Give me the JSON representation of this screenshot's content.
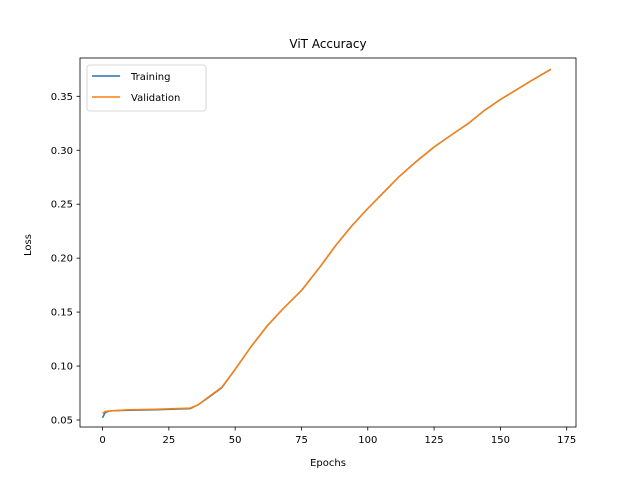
{
  "chart_data": {
    "type": "line",
    "title": "ViT Accuracy",
    "xlabel": "Epochs",
    "ylabel": "Loss",
    "xlim": [
      -8.5,
      178.5
    ],
    "ylim": [
      0.0435,
      0.3855
    ],
    "xticks": [
      0,
      25,
      50,
      75,
      100,
      125,
      150,
      175
    ],
    "yticks": [
      0.05,
      0.1,
      0.15,
      0.2,
      0.25,
      0.3,
      0.35
    ],
    "ytick_labels": [
      "0.05",
      "0.10",
      "0.15",
      "0.20",
      "0.25",
      "0.30",
      "0.35"
    ],
    "legend": "top-left",
    "grid": false,
    "series": [
      {
        "name": "Training",
        "color": "#1f77b4",
        "points": [
          [
            0,
            0.052
          ],
          [
            1,
            0.057
          ],
          [
            3,
            0.0585
          ],
          [
            10,
            0.059
          ],
          [
            20,
            0.0595
          ],
          [
            33,
            0.0605
          ],
          [
            36,
            0.064
          ],
          [
            40,
            0.071
          ],
          [
            45,
            0.08
          ],
          [
            50,
            0.097
          ],
          [
            56,
            0.118
          ],
          [
            62,
            0.137
          ],
          [
            68,
            0.153
          ],
          [
            75,
            0.17
          ],
          [
            82,
            0.192
          ],
          [
            88,
            0.212
          ],
          [
            94,
            0.23
          ],
          [
            100,
            0.246
          ],
          [
            106,
            0.261
          ],
          [
            112,
            0.276
          ],
          [
            118,
            0.289
          ],
          [
            125,
            0.303
          ],
          [
            132,
            0.315
          ],
          [
            138,
            0.325
          ],
          [
            144,
            0.337
          ],
          [
            150,
            0.347
          ],
          [
            156,
            0.356
          ],
          [
            162,
            0.365
          ],
          [
            169,
            0.375
          ]
        ]
      },
      {
        "name": "Validation",
        "color": "#ff7f0e",
        "points": [
          [
            0,
            0.056
          ],
          [
            1,
            0.058
          ],
          [
            3,
            0.0585
          ],
          [
            10,
            0.0595
          ],
          [
            20,
            0.06
          ],
          [
            33,
            0.061
          ],
          [
            36,
            0.064
          ],
          [
            40,
            0.0715
          ],
          [
            45,
            0.0805
          ],
          [
            50,
            0.097
          ],
          [
            56,
            0.118
          ],
          [
            62,
            0.137
          ],
          [
            68,
            0.153
          ],
          [
            75,
            0.17
          ],
          [
            82,
            0.192
          ],
          [
            88,
            0.212
          ],
          [
            94,
            0.23
          ],
          [
            100,
            0.246
          ],
          [
            106,
            0.261
          ],
          [
            112,
            0.276
          ],
          [
            118,
            0.289
          ],
          [
            125,
            0.303
          ],
          [
            132,
            0.315
          ],
          [
            138,
            0.325
          ],
          [
            144,
            0.337
          ],
          [
            150,
            0.347
          ],
          [
            156,
            0.356
          ],
          [
            162,
            0.365
          ],
          [
            169,
            0.375
          ]
        ]
      }
    ]
  }
}
